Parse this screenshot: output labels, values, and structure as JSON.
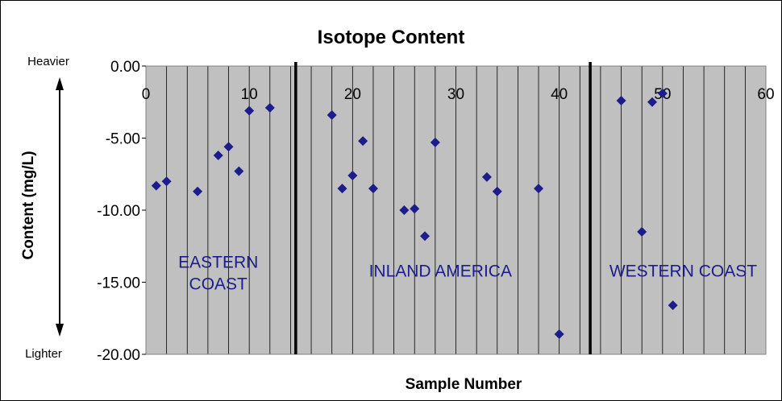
{
  "chart_data": {
    "type": "scatter",
    "title": "Isotope Content",
    "xlabel": "Sample Number",
    "ylabel": "Content (mg/L)",
    "xlim": [
      0,
      60
    ],
    "ylim": [
      -20,
      0
    ],
    "x_ticks": [
      "0",
      "10",
      "20",
      "30",
      "40",
      "50",
      "60"
    ],
    "y_ticks": [
      "0.00",
      "-5.00",
      "-10.00",
      "-15.00",
      "-20.00"
    ],
    "grid": "vertical every 2 units",
    "marker_color": "#1c1c8c",
    "plot_bg": "#c0c0c0",
    "scale_labels": {
      "top": "Heavier",
      "bottom": "Lighter"
    },
    "dividers_x": [
      14.5,
      43
    ],
    "regions": [
      {
        "lines": [
          "EASTERN",
          "COAST"
        ],
        "x": 7,
        "y": -14
      },
      {
        "lines": [
          "INLAND AMERICA"
        ],
        "x": 28.5,
        "y": -14.6
      },
      {
        "lines": [
          "WESTERN COAST"
        ],
        "x": 52,
        "y": -14.6
      }
    ],
    "series": [
      {
        "points": [
          [
            1,
            -8.3
          ],
          [
            2,
            -8.0
          ],
          [
            5,
            -8.7
          ],
          [
            7,
            -6.2
          ],
          [
            8,
            -5.6
          ],
          [
            9,
            -7.3
          ],
          [
            10,
            -3.1
          ],
          [
            12,
            -2.9
          ],
          [
            18,
            -3.4
          ],
          [
            19,
            -8.5
          ],
          [
            20,
            -7.6
          ],
          [
            21,
            -5.2
          ],
          [
            22,
            -8.5
          ],
          [
            25,
            -10.0
          ],
          [
            26,
            -9.9
          ],
          [
            27,
            -11.8
          ],
          [
            28,
            -5.3
          ],
          [
            33,
            -7.7
          ],
          [
            34,
            -8.7
          ],
          [
            38,
            -8.5
          ],
          [
            40,
            -18.6
          ],
          [
            46,
            -2.4
          ],
          [
            48,
            -11.5
          ],
          [
            49,
            -2.5
          ],
          [
            50,
            -1.9
          ],
          [
            51,
            -16.6
          ]
        ]
      }
    ]
  }
}
